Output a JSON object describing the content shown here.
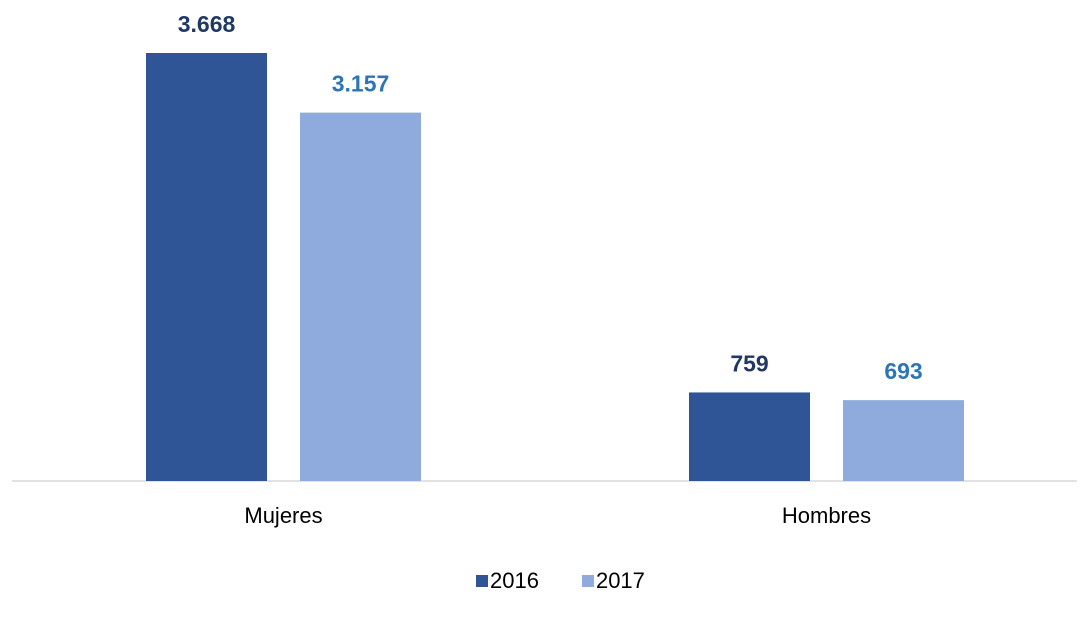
{
  "chart_data": {
    "type": "bar",
    "categories": [
      "Mujeres",
      "Hombres"
    ],
    "series": [
      {
        "name": "2016",
        "color": "#2f5597",
        "values": [
          3668,
          759
        ],
        "value_labels": [
          "3.668",
          "759"
        ]
      },
      {
        "name": "2017",
        "color": "#8faadc",
        "values": [
          3157,
          693
        ],
        "value_labels": [
          "3.157",
          "693"
        ]
      }
    ],
    "legend": "bottom"
  }
}
